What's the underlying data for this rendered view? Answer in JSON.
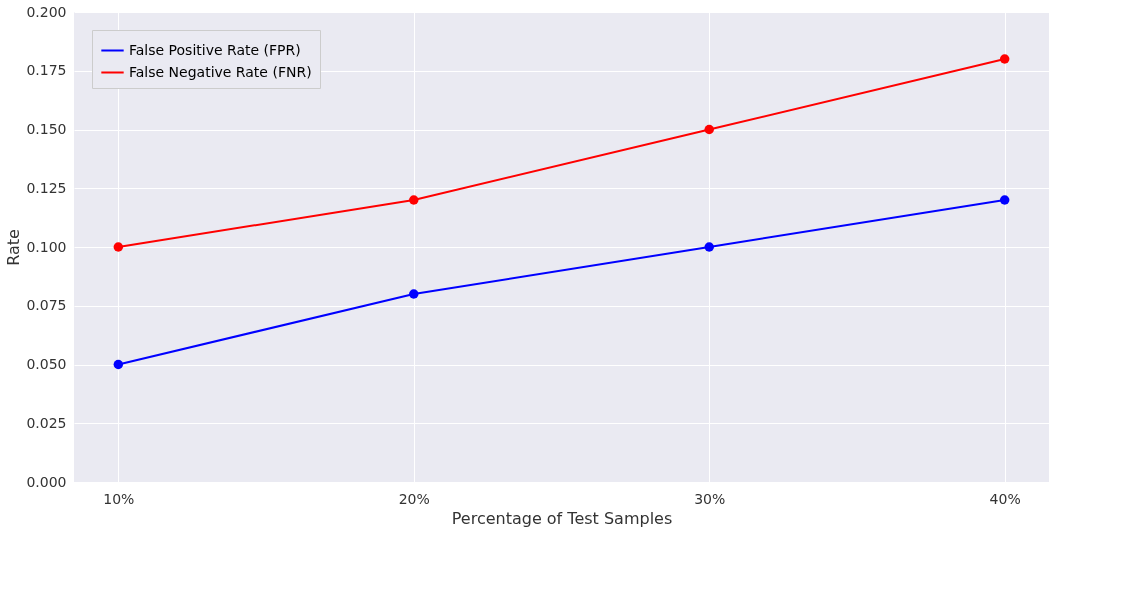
{
  "chart_data": {
    "type": "line",
    "xlabel": "Percentage of Test Samples",
    "ylabel": "Rate",
    "categories": [
      "10%",
      "20%",
      "30%",
      "40%"
    ],
    "series": [
      {
        "name": "False Positive Rate (FPR)",
        "color": "#0000ff",
        "values": [
          0.05,
          0.08,
          0.1,
          0.12
        ]
      },
      {
        "name": "False Negative Rate (FNR)",
        "color": "#ff0000",
        "values": [
          0.1,
          0.12,
          0.15,
          0.18
        ]
      }
    ],
    "ylim": [
      0,
      0.2
    ],
    "yticks": [
      {
        "value": 0,
        "label": "0.000"
      },
      {
        "value": 0.025,
        "label": "0.025"
      },
      {
        "value": 0.05,
        "label": "0.050"
      },
      {
        "value": 0.075,
        "label": "0.075"
      },
      {
        "value": 0.1,
        "label": "0.100"
      },
      {
        "value": 0.125,
        "label": "0.125"
      },
      {
        "value": 0.15,
        "label": "0.150"
      },
      {
        "value": 0.175,
        "label": "0.175"
      },
      {
        "value": 0.2,
        "label": "0.200"
      }
    ],
    "grid": true,
    "legend": "top left",
    "marker": "circle",
    "line_style": "solid"
  }
}
